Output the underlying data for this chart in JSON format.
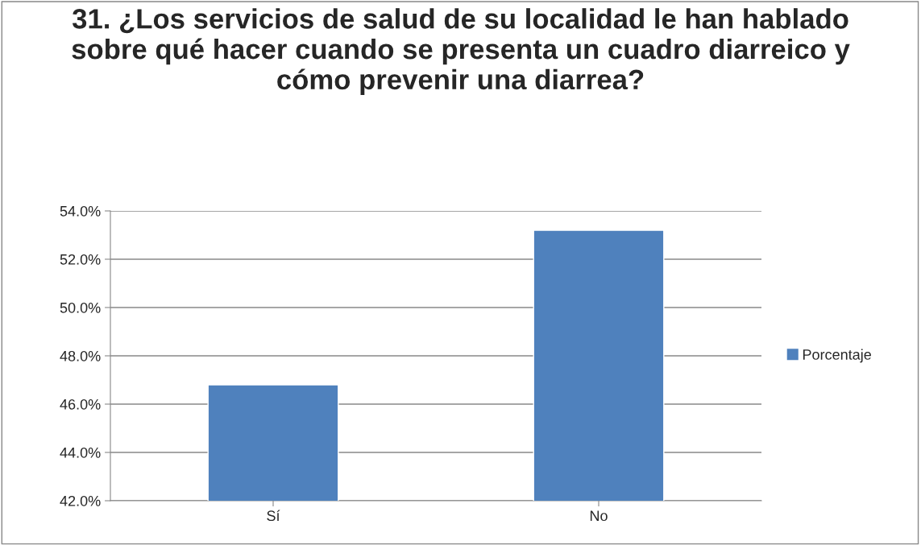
{
  "chart_data": {
    "type": "bar",
    "title": "31. ¿Los servicios de salud de su localidad le han hablado sobre qué hacer cuando se presenta un cuadro diarreico y cómo prevenir una diarrea?",
    "categories": [
      "Sí",
      "No"
    ],
    "series": [
      {
        "name": "Porcentaje",
        "color": "#4f81bd",
        "values": [
          46.8,
          53.2
        ]
      }
    ],
    "ylim": [
      42,
      54
    ],
    "yticks": [
      {
        "value": 42,
        "label": "42.0%"
      },
      {
        "value": 44,
        "label": "44.0%"
      },
      {
        "value": 46,
        "label": "46.0%"
      },
      {
        "value": 48,
        "label": "48.0%"
      },
      {
        "value": 50,
        "label": "50.0%"
      },
      {
        "value": 52,
        "label": "52.0%"
      },
      {
        "value": 54,
        "label": "54.0%"
      }
    ],
    "grid": "y",
    "legend": "right"
  }
}
